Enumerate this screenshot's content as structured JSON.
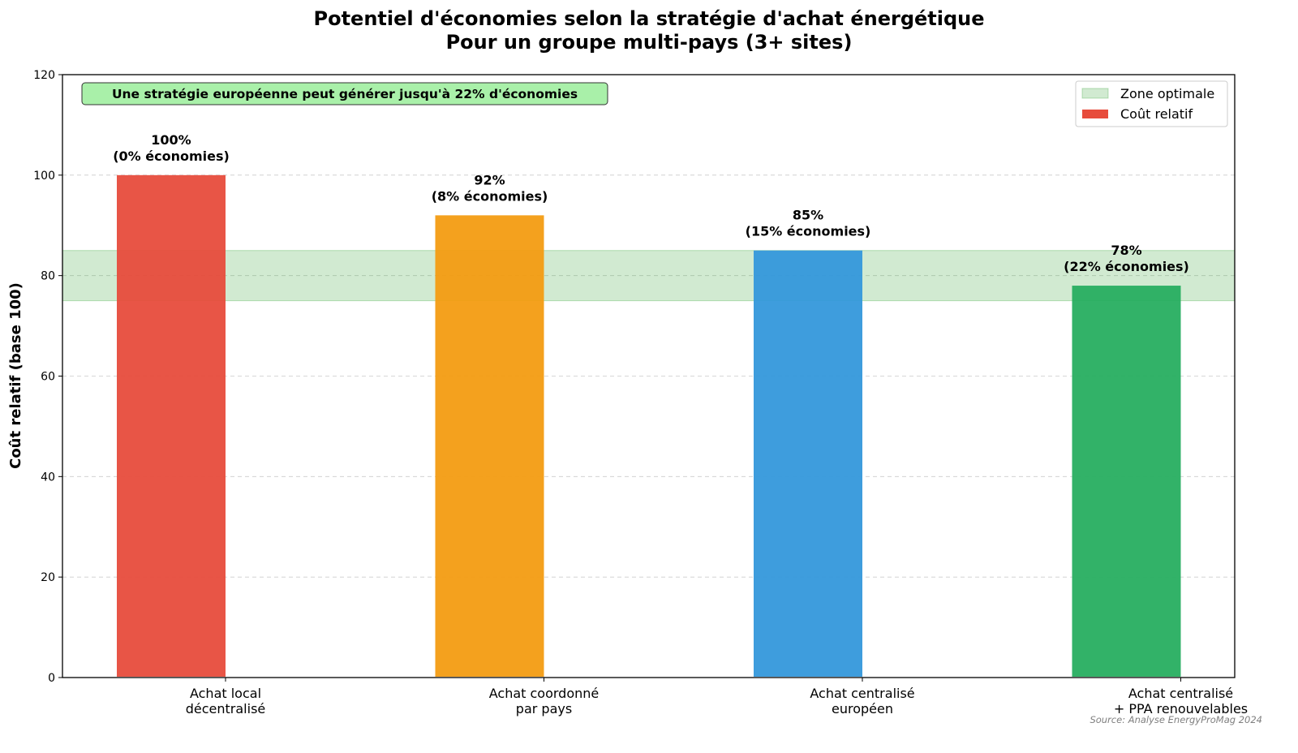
{
  "chart_data": {
    "type": "bar",
    "title": "Potentiel d'économies selon la stratégie d'achat énergétique",
    "subtitle": "Pour un groupe multi-pays (3+ sites)",
    "xlabel": "",
    "ylabel": "Coût relatif (base 100)",
    "ylim": [
      0,
      120
    ],
    "yticks": [
      0,
      20,
      40,
      60,
      80,
      100,
      120
    ],
    "grid": "y, dashed",
    "categories": [
      "Achat local\ndécentralisé",
      "Achat coordonné\npar pays",
      "Achat centralisé\neuropéen",
      "Achat centralisé\n+ PPA renouvelables"
    ],
    "values": [
      100,
      92,
      85,
      78
    ],
    "colors": [
      "#e74c3c",
      "#f39c12",
      "#3498db",
      "#27ae60"
    ],
    "data_labels": [
      [
        "100%",
        "(0% économies)"
      ],
      [
        "92%",
        "(8% économies)"
      ],
      [
        "85%",
        "(15% économies)"
      ],
      [
        "78%",
        "(22% économies)"
      ]
    ],
    "band": {
      "name": "Zone optimale",
      "from": 75,
      "to": 85,
      "color": "#2ca02c"
    },
    "legend": {
      "placement": "top-right",
      "entries": [
        "Zone optimale",
        "Coût relatif"
      ]
    },
    "annotation": "Une stratégie européenne peut générer jusqu'à 22% d'économies",
    "source": "Source: Analyse EnergyProMag 2024"
  }
}
